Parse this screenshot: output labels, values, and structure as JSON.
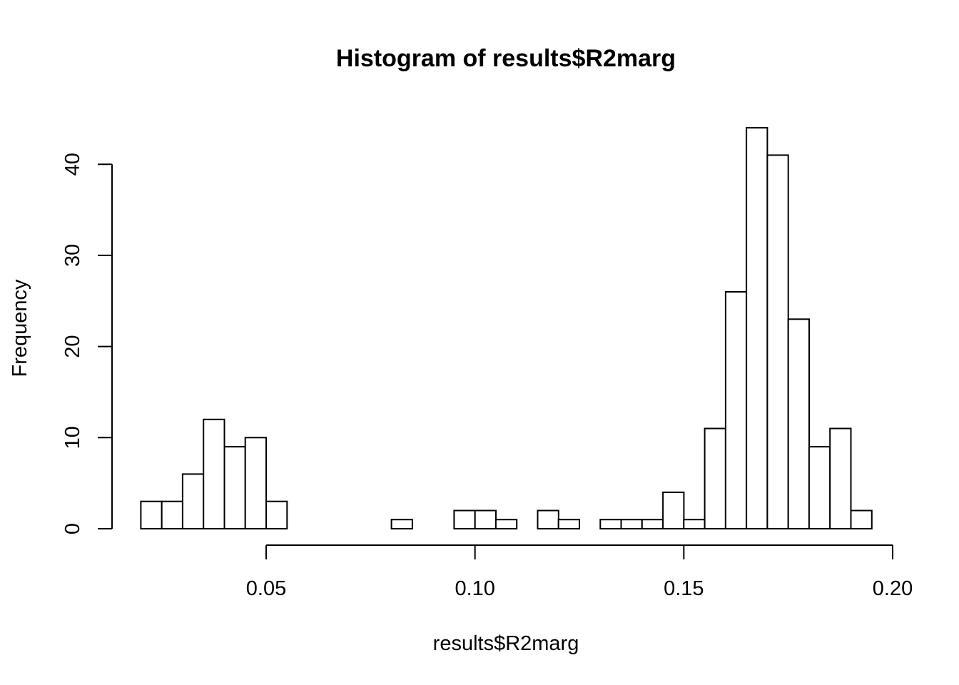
{
  "chart_data": {
    "type": "bar",
    "title": "Histogram of results$R2marg",
    "xlabel": "results$R2marg",
    "ylabel": "Frequency",
    "bin_start": 0.02,
    "bin_width": 0.005,
    "values": [
      3,
      3,
      6,
      12,
      9,
      10,
      3,
      0,
      0,
      0,
      0,
      0,
      1,
      0,
      0,
      2,
      2,
      1,
      0,
      2,
      1,
      0,
      1,
      1,
      1,
      4,
      1,
      11,
      26,
      44,
      41,
      23,
      9,
      11,
      2
    ],
    "xlim": [
      0.05,
      0.2
    ],
    "xticks": [
      0.05,
      0.1,
      0.15,
      0.2
    ],
    "xtick_labels": [
      "0.05",
      "0.10",
      "0.15",
      "0.20"
    ],
    "ylim": [
      0,
      40
    ],
    "yticks": [
      0,
      10,
      20,
      30,
      40
    ],
    "ytick_labels": [
      "0",
      "10",
      "20",
      "30",
      "40"
    ],
    "grid": false
  }
}
